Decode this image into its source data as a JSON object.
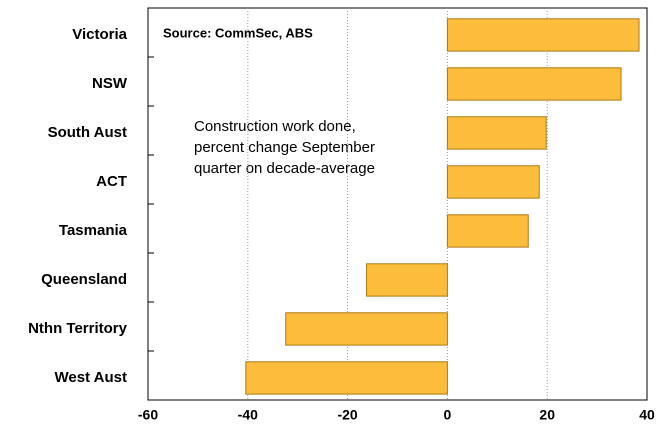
{
  "chart_data": {
    "type": "bar",
    "orientation": "horizontal",
    "source": "Source: CommSec, ABS",
    "annotation": [
      "Construction work done,",
      "percent change September",
      "quarter on decade-average"
    ],
    "categories": [
      "Victoria",
      "NSW",
      "South Aust",
      "ACT",
      "Tasmania",
      "Queensland",
      "Nthn Territory",
      "West Aust"
    ],
    "values": [
      38.4,
      34.8,
      19.8,
      18.4,
      16.2,
      -16.2,
      -32.4,
      -40.4
    ],
    "color": "#fbbd3b",
    "xlim": [
      -60,
      40
    ],
    "xticks": [
      -60,
      -40,
      -20,
      0,
      20,
      40
    ],
    "grid": true
  }
}
